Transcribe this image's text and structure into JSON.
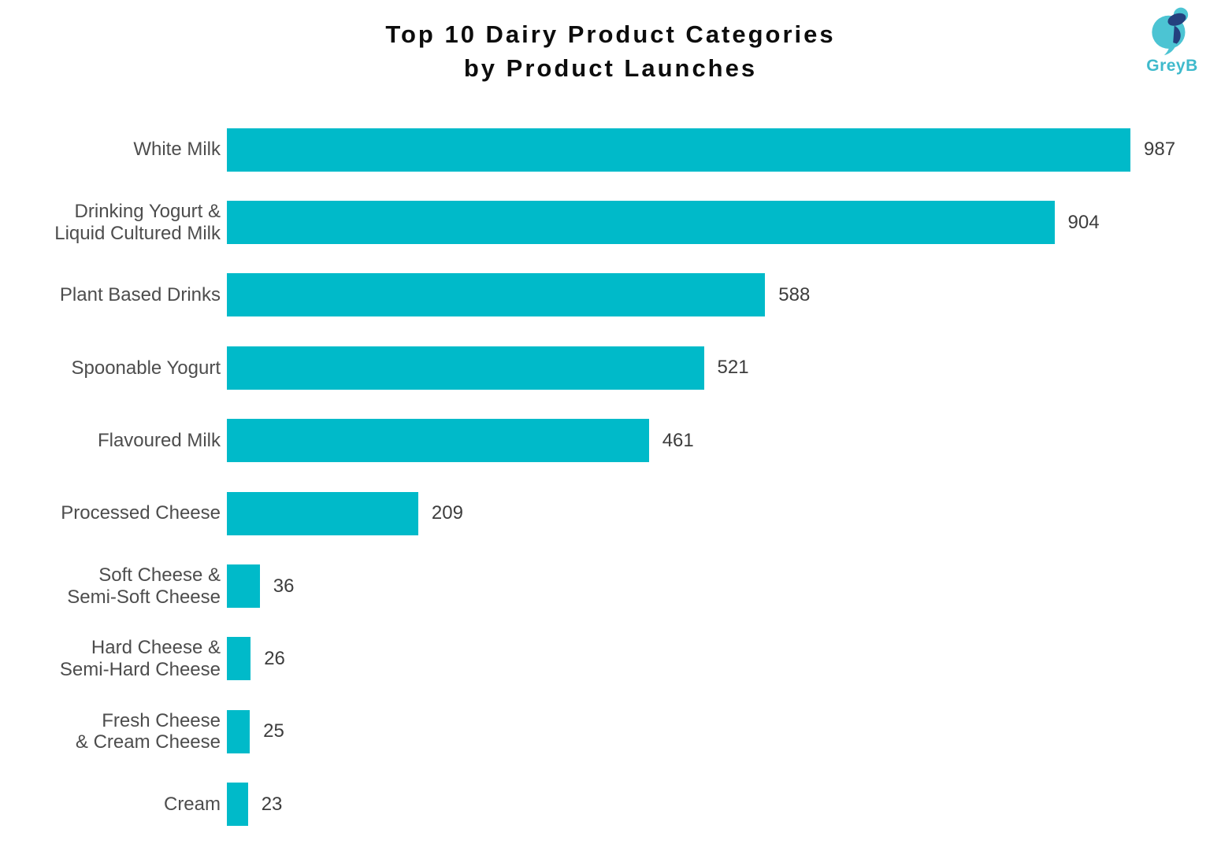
{
  "title": {
    "line1": "Top 10 Dairy Product Categories",
    "line2": "by Product Launches"
  },
  "logo": {
    "brand": "GreyB",
    "teal": "#4cc4d3",
    "navy": "#24407e",
    "text_color": "#3fbacc"
  },
  "chart_data": {
    "type": "bar",
    "orientation": "horizontal",
    "title": "Top 10 Dairy Product Categories by Product Launches",
    "xlabel": "",
    "ylabel": "",
    "grid": false,
    "axes_shown": false,
    "legend": "none",
    "value_labels": "end-of-bar",
    "bar_color": "#00bac9",
    "category_label_color": "#4d4d4d",
    "value_label_color": "#3d3d3d",
    "categories": [
      "White Milk",
      "Drinking Yogurt &\nLiquid Cultured Milk",
      "Plant Based Drinks",
      "Spoonable Yogurt",
      "Flavoured Milk",
      "Processed Cheese",
      "Soft Cheese &\nSemi-Soft Cheese",
      "Hard Cheese &\nSemi-Hard Cheese",
      "Fresh Cheese\n& Cream Cheese",
      "Cream"
    ],
    "values": [
      987,
      904,
      588,
      521,
      461,
      209,
      36,
      26,
      25,
      23
    ]
  }
}
